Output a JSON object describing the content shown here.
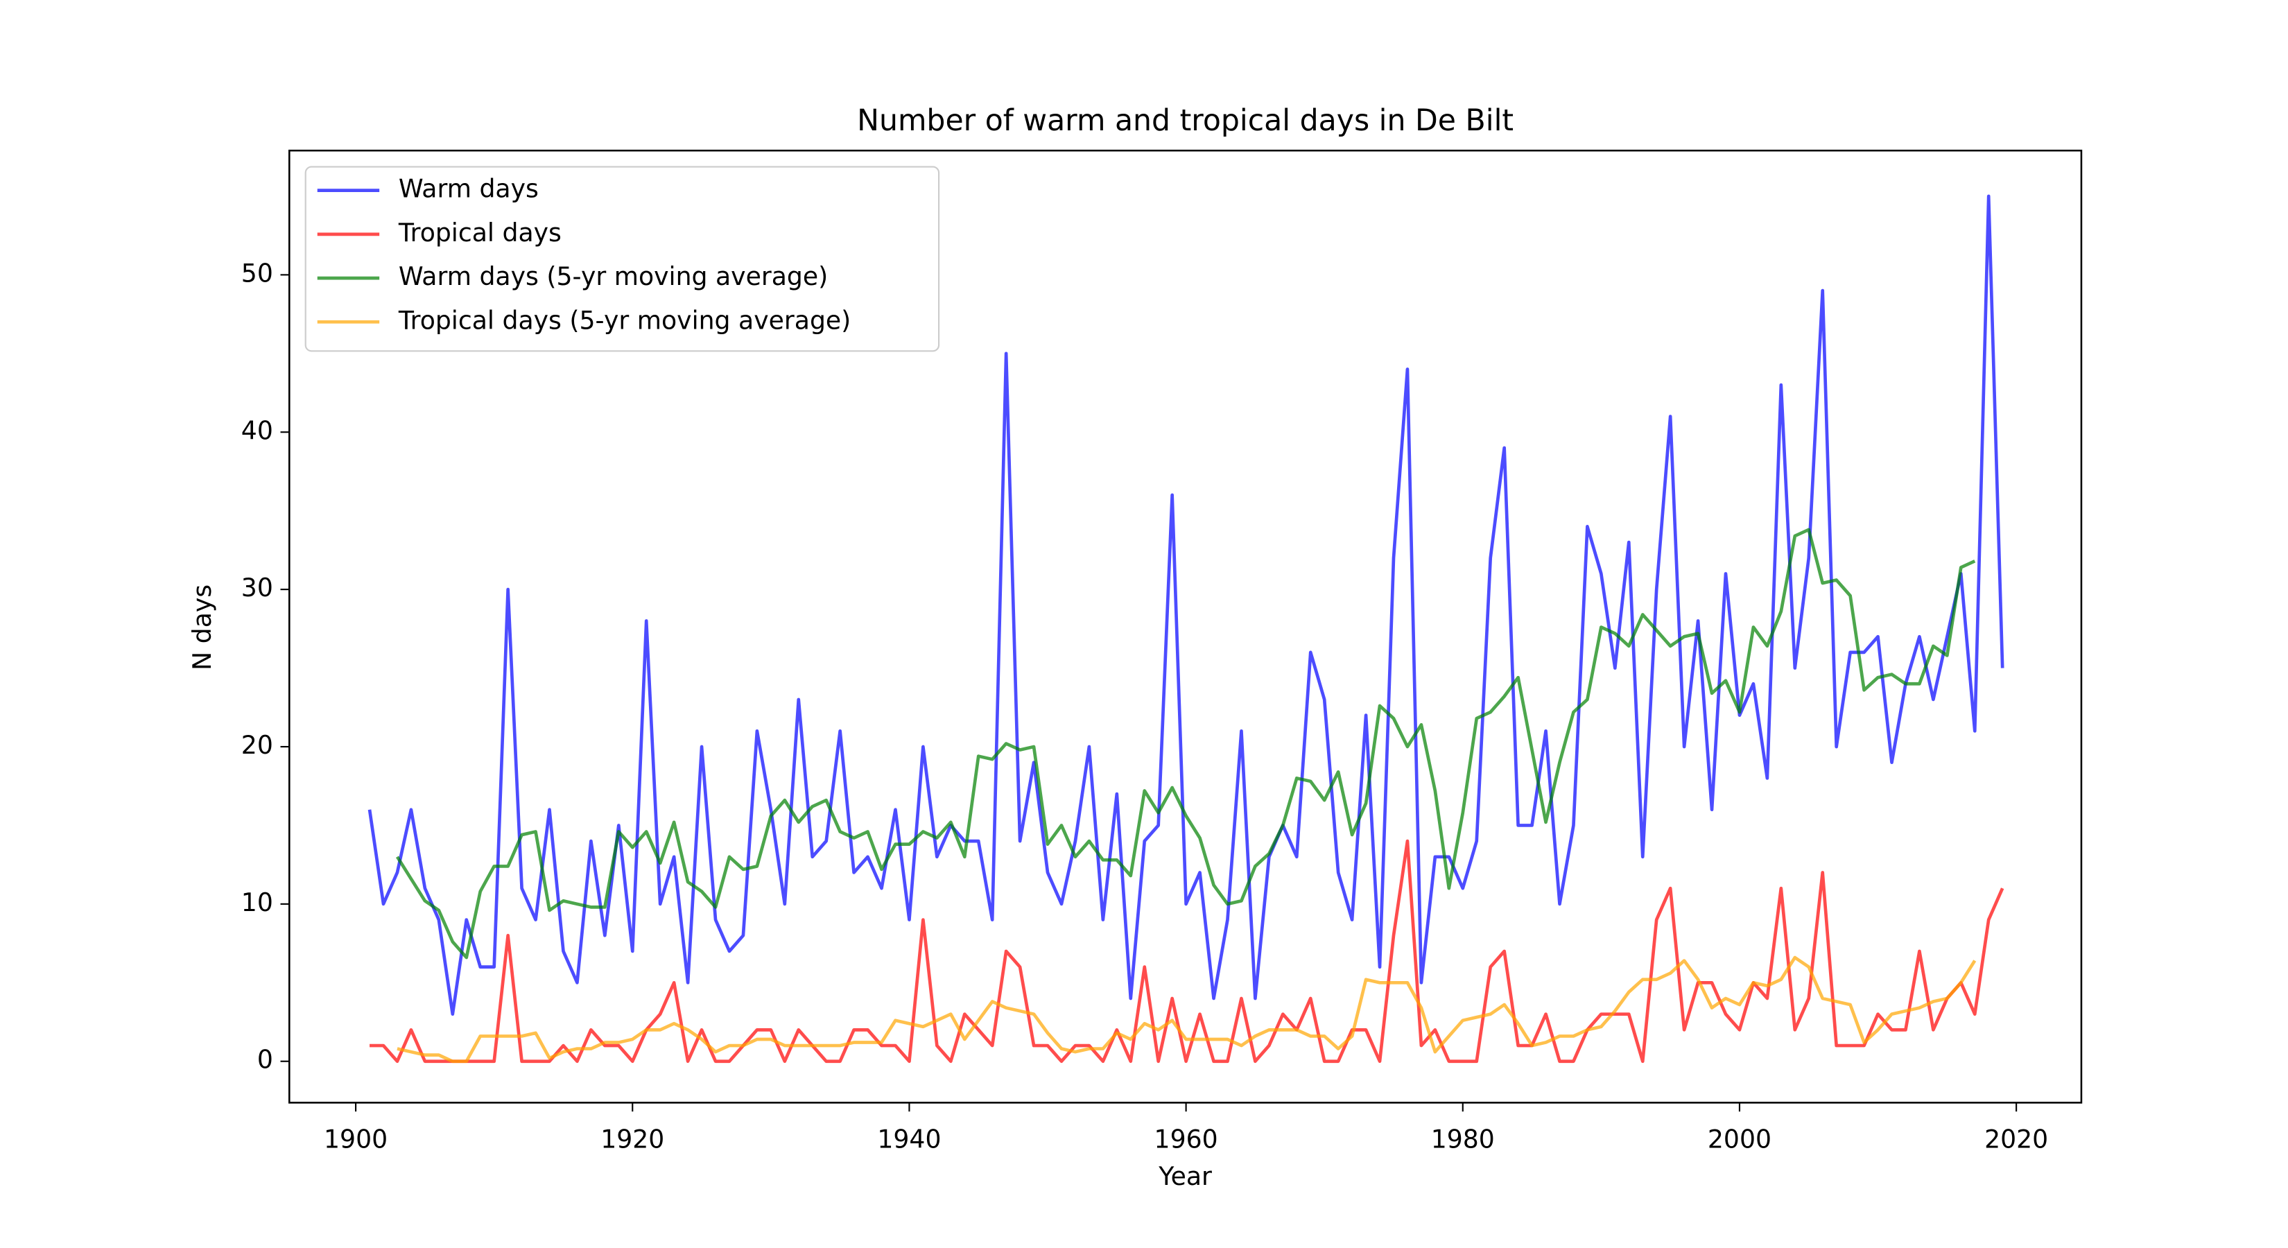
{
  "chart_data": {
    "type": "line",
    "title": "Number of warm and tropical days in De Bilt",
    "xlabel": "Year",
    "ylabel": "N days",
    "x": [
      1901,
      1902,
      1903,
      1904,
      1905,
      1906,
      1907,
      1908,
      1909,
      1910,
      1911,
      1912,
      1913,
      1914,
      1915,
      1916,
      1917,
      1918,
      1919,
      1920,
      1921,
      1922,
      1923,
      1924,
      1925,
      1926,
      1927,
      1928,
      1929,
      1930,
      1931,
      1932,
      1933,
      1934,
      1935,
      1936,
      1937,
      1938,
      1939,
      1940,
      1941,
      1942,
      1943,
      1944,
      1945,
      1946,
      1947,
      1948,
      1949,
      1950,
      1951,
      1952,
      1953,
      1954,
      1955,
      1956,
      1957,
      1958,
      1959,
      1960,
      1961,
      1962,
      1963,
      1964,
      1965,
      1966,
      1967,
      1968,
      1969,
      1970,
      1971,
      1972,
      1973,
      1974,
      1975,
      1976,
      1977,
      1978,
      1979,
      1980,
      1981,
      1982,
      1983,
      1984,
      1985,
      1986,
      1987,
      1988,
      1989,
      1990,
      1991,
      1992,
      1993,
      1994,
      1995,
      1996,
      1997,
      1998,
      1999,
      2000,
      2001,
      2002,
      2003,
      2004,
      2005,
      2006,
      2007,
      2008,
      2009,
      2010,
      2011,
      2012,
      2013,
      2014,
      2015,
      2016,
      2017,
      2018,
      2019
    ],
    "series": [
      {
        "name": "Warm days",
        "color": "#0000ff",
        "values": [
          16,
          10,
          12,
          16,
          11,
          9,
          3,
          9,
          6,
          6,
          30,
          11,
          9,
          16,
          7,
          5,
          14,
          8,
          15,
          7,
          28,
          10,
          13,
          5,
          20,
          9,
          7,
          8,
          21,
          16,
          10,
          23,
          13,
          14,
          21,
          12,
          13,
          11,
          16,
          9,
          20,
          13,
          15,
          14,
          14,
          9,
          45,
          14,
          19,
          12,
          10,
          14,
          20,
          9,
          17,
          4,
          14,
          15,
          36,
          10,
          12,
          4,
          9,
          21,
          4,
          13,
          15,
          13,
          26,
          23,
          12,
          9,
          22,
          6,
          32,
          44,
          5,
          13,
          13,
          11,
          14,
          32,
          39,
          15,
          15,
          21,
          10,
          15,
          34,
          31,
          25,
          33,
          13,
          30,
          41,
          20,
          28,
          16,
          31,
          22,
          24,
          18,
          43,
          25,
          32,
          49,
          20,
          26,
          26,
          27,
          19,
          24,
          27,
          23,
          27,
          31,
          21,
          55,
          25
        ]
      },
      {
        "name": "Tropical days",
        "color": "#ff0000",
        "values": [
          1,
          1,
          0,
          2,
          0,
          0,
          0,
          0,
          0,
          0,
          8,
          0,
          0,
          0,
          1,
          0,
          2,
          1,
          1,
          0,
          2,
          3,
          5,
          0,
          2,
          0,
          0,
          1,
          2,
          2,
          0,
          2,
          1,
          0,
          0,
          2,
          2,
          1,
          1,
          0,
          9,
          1,
          0,
          3,
          2,
          1,
          7,
          6,
          1,
          1,
          0,
          1,
          1,
          0,
          2,
          0,
          6,
          0,
          4,
          0,
          3,
          0,
          0,
          4,
          0,
          1,
          3,
          2,
          4,
          0,
          0,
          2,
          2,
          0,
          8,
          14,
          1,
          2,
          0,
          0,
          0,
          6,
          7,
          1,
          1,
          3,
          0,
          0,
          2,
          3,
          3,
          3,
          0,
          9,
          11,
          2,
          5,
          5,
          3,
          2,
          5,
          4,
          11,
          2,
          4,
          12,
          1,
          1,
          1,
          3,
          2,
          2,
          7,
          2,
          4,
          5,
          3,
          9,
          11
        ]
      },
      {
        "name": "Warm days (5-yr moving average)",
        "color": "#008000",
        "values": [
          null,
          null,
          13,
          11.6,
          10.2,
          9.6,
          7.6,
          6.6,
          10.8,
          12.4,
          12.4,
          14.4,
          14.6,
          9.6,
          10.2,
          10,
          9.8,
          9.8,
          14.6,
          13.6,
          14.6,
          12.6,
          15.2,
          11.4,
          10.8,
          9.8,
          13,
          12.2,
          12.4,
          15.6,
          16.6,
          15.2,
          16.2,
          16.6,
          14.6,
          14.2,
          14.6,
          12.2,
          13.8,
          13.8,
          14.6,
          14.2,
          15.2,
          13,
          19.4,
          19.2,
          20.2,
          19.8,
          20,
          13.8,
          15,
          13,
          14,
          12.8,
          12.8,
          11.8,
          17.2,
          15.8,
          17.4,
          15.6,
          14.2,
          11.2,
          10,
          10.2,
          12.4,
          13.2,
          15,
          18,
          17.8,
          16.6,
          18.4,
          14.4,
          16.4,
          22.6,
          21.8,
          20,
          21.4,
          17.2,
          11,
          15.8,
          21.8,
          22.2,
          23.2,
          24.4,
          19.8,
          15.2,
          19,
          22.2,
          23,
          27.6,
          27.2,
          26.4,
          28.4,
          27.4,
          26.4,
          27,
          27.2,
          23.4,
          24.2,
          22.2,
          27.6,
          26.4,
          28.6,
          33.4,
          33.8,
          30.4,
          30.6,
          29.6,
          23.6,
          24.4,
          24.6,
          24,
          24,
          26.4,
          25.8,
          31.4,
          31.8,
          null,
          null
        ]
      },
      {
        "name": "Tropical days (5-yr moving average)",
        "color": "#ffa500",
        "values": [
          null,
          null,
          0.8,
          0.6,
          0.4,
          0.4,
          0,
          0,
          1.6,
          1.6,
          1.6,
          1.6,
          1.8,
          0.2,
          0.6,
          0.8,
          0.8,
          1.2,
          1.2,
          1.4,
          2,
          2,
          2.4,
          2,
          1.4,
          0.6,
          1,
          1,
          1.4,
          1.4,
          1,
          1,
          1,
          1,
          1,
          1.2,
          1.2,
          1.2,
          2.6,
          2.4,
          2.2,
          2.6,
          3,
          1.4,
          2.6,
          3.8,
          3.4,
          3.2,
          3,
          1.8,
          0.8,
          0.6,
          0.8,
          0.8,
          1.8,
          1.4,
          2.4,
          2,
          2.6,
          1.4,
          1.4,
          1.4,
          1.4,
          1,
          1.6,
          2,
          2,
          2,
          1.6,
          1.6,
          0.8,
          1.6,
          5.2,
          5,
          5,
          5,
          3.4,
          0.6,
          1.6,
          2.6,
          2.8,
          3,
          3.6,
          2.4,
          1,
          1.2,
          1.6,
          1.6,
          2,
          2.2,
          3.2,
          4.4,
          5.2,
          5.2,
          5.6,
          6.4,
          5.2,
          3.4,
          4,
          3.6,
          5,
          4.8,
          5.2,
          6.6,
          6,
          4,
          3.8,
          3.6,
          1.2,
          2,
          3,
          3.2,
          3.4,
          3.8,
          4,
          5,
          6.4,
          null,
          null
        ]
      }
    ],
    "xlim": [
      1895.2,
      2024.7
    ],
    "ylim": [
      -2.63,
      57.9
    ],
    "xticks": [
      1900,
      1920,
      1940,
      1960,
      1980,
      2000,
      2020
    ],
    "yticks": [
      0,
      10,
      20,
      30,
      40,
      50
    ],
    "legend": "upper left",
    "grid": false
  }
}
